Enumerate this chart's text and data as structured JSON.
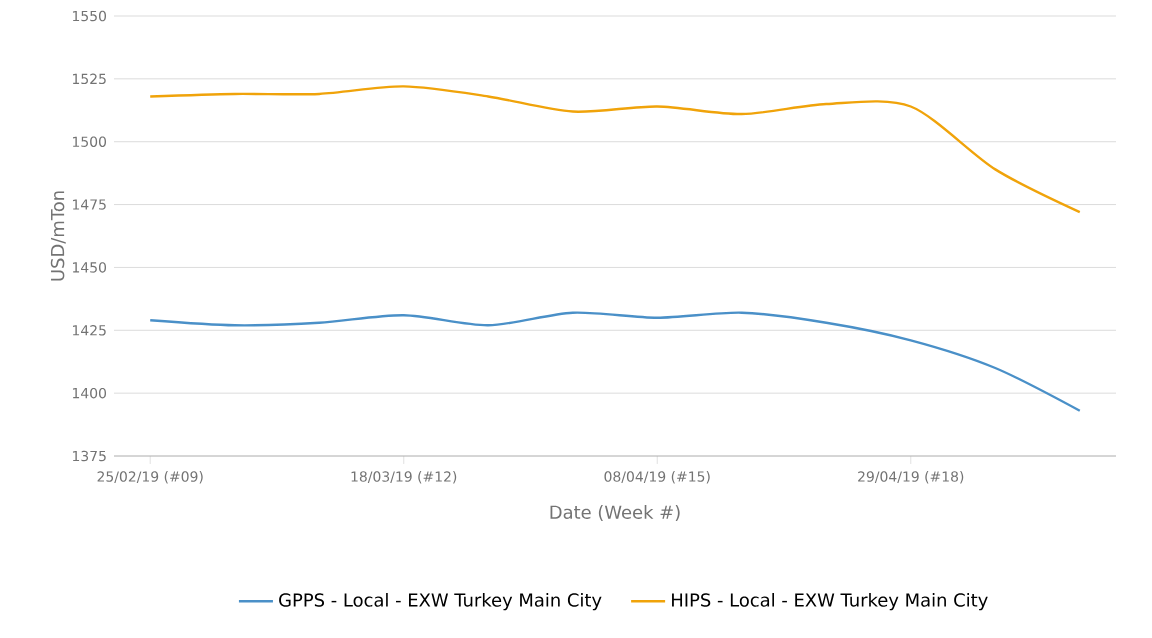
{
  "chart_data": {
    "type": "line",
    "xlabel": "Date (Week #)",
    "ylabel": "USD/mTon",
    "x": [
      "2019-02-25",
      "2019-03-04",
      "2019-03-11",
      "2019-03-18",
      "2019-03-25",
      "2019-04-01",
      "2019-04-08",
      "2019-04-15",
      "2019-04-22",
      "2019-04-29",
      "2019-05-06",
      "2019-05-13"
    ],
    "series": [
      {
        "name": "GPPS - Local - EXW Turkey Main City",
        "color": "#4a90c8",
        "values": [
          1429,
          1427,
          1428,
          1431,
          1427,
          1432,
          1430,
          1432,
          1428,
          1421,
          1410,
          1393
        ]
      },
      {
        "name": "HIPS - Local - EXW Turkey Main City",
        "color": "#f0a30a",
        "values": [
          1518,
          1519,
          1519,
          1522,
          1518,
          1512,
          1514,
          1511,
          1515,
          1514,
          1489,
          1472
        ]
      }
    ],
    "xlim": [
      "2019-02-22",
      "2019-05-16"
    ],
    "xticks": [
      {
        "value": "2019-02-25",
        "label": "25/02/19 (#09)"
      },
      {
        "value": "2019-03-18",
        "label": "18/03/19 (#12)"
      },
      {
        "value": "2019-04-08",
        "label": "08/04/19 (#15)"
      },
      {
        "value": "2019-04-29",
        "label": "29/04/19 (#18)"
      }
    ],
    "ylim": [
      1375,
      1550
    ],
    "yticks": [
      1375,
      1400,
      1425,
      1450,
      1475,
      1500,
      1525,
      1550
    ],
    "grid": "y",
    "legend": "bottom",
    "marker": "none",
    "line_style": "solid"
  }
}
